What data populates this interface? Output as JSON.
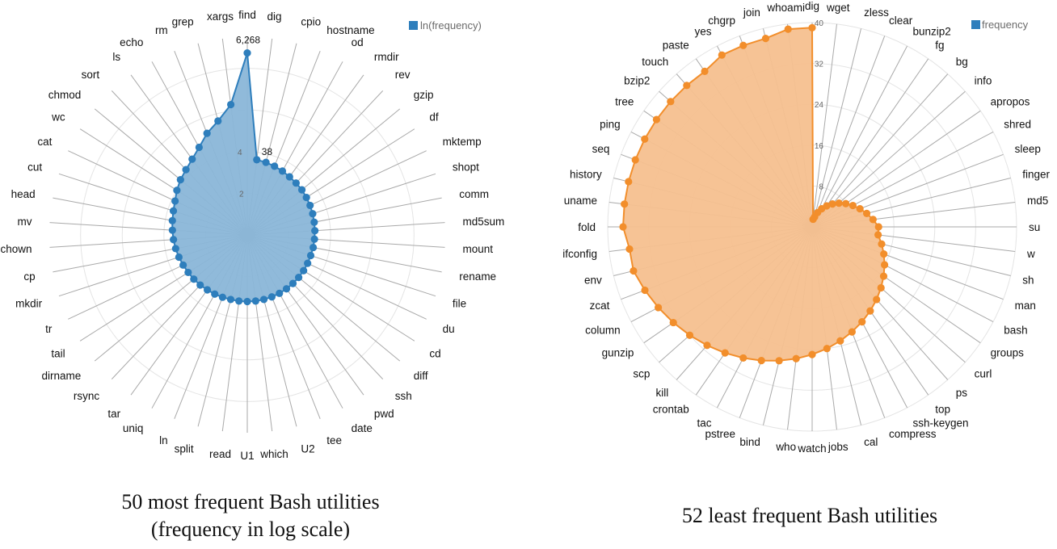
{
  "chart_data": [
    {
      "type": "radar",
      "legend": {
        "label": "ln(frequency)",
        "position": "top-right"
      },
      "caption": [
        "50 most frequent Bash utilities",
        "(frequency in log scale)"
      ],
      "color": "#2e7ebc",
      "fill": "#8ab6d8",
      "tick_labels": [
        "2",
        "4",
        "38",
        "6,268"
      ],
      "rmax": 9.5,
      "categories": [
        "find",
        "dig",
        "cpio",
        "hostname",
        "od",
        "rmdir",
        "rev",
        "gzip",
        "df",
        "mktemp",
        "shopt",
        "comm",
        "md5sum",
        "mount",
        "rename",
        "file",
        "du",
        "cd",
        "diff",
        "ssh",
        "pwd",
        "date",
        "tee",
        "U2",
        "which",
        "U1",
        "read",
        "split",
        "ln",
        "uniq",
        "tar",
        "rsync",
        "dirname",
        "tail",
        "tr",
        "mkdir",
        "cp",
        "chown",
        "mv",
        "head",
        "cut",
        "cat",
        "wc",
        "chmod",
        "sort",
        "ls",
        "echo",
        "rm",
        "grep",
        "xargs"
      ],
      "values": [
        8.74,
        3.64,
        3.6,
        3.55,
        3.5,
        3.45,
        3.42,
        3.4,
        3.36,
        3.33,
        3.3,
        3.27,
        3.25,
        3.23,
        3.22,
        3.2,
        3.2,
        3.2,
        3.2,
        3.2,
        3.2,
        3.2,
        3.2,
        3.2,
        3.2,
        3.2,
        3.2,
        3.2,
        3.22,
        3.24,
        3.26,
        3.3,
        3.33,
        3.36,
        3.4,
        3.45,
        3.5,
        3.55,
        3.6,
        3.66,
        3.73,
        3.83,
        4.0,
        4.16,
        4.3,
        4.5,
        4.8,
        5.25,
        5.65,
        6.31
      ]
    },
    {
      "type": "radar",
      "legend": {
        "label": "frequency",
        "position": "top-right"
      },
      "caption": [
        "52 least frequent Bash utilities"
      ],
      "color": "#f28e2b",
      "fill": "#f5c08f",
      "tick_labels": [
        "8",
        "16",
        "24",
        "32",
        "40"
      ],
      "rmax": 40,
      "categories": [
        "dig",
        "wget",
        "zless",
        "clear",
        "bunzip2",
        "fg",
        "bg",
        "info",
        "apropos",
        "shred",
        "sleep",
        "finger",
        "md5",
        "su",
        "w",
        "sh",
        "man",
        "bash",
        "groups",
        "curl",
        "ps",
        "top",
        "ssh-keygen",
        "compress",
        "cal",
        "jobs",
        "watch",
        "who",
        "bind",
        "pstree",
        "tac",
        "crontab",
        "kill",
        "scp",
        "gunzip",
        "column",
        "zcat",
        "env",
        "ifconfig",
        "fold",
        "uname",
        "history",
        "seq",
        "ping",
        "tree",
        "bzip2",
        "touch",
        "paste",
        "yes",
        "chgrp",
        "join",
        "whoami"
      ],
      "values": [
        39,
        1.5,
        2,
        3,
        4,
        5,
        6,
        7,
        8,
        9,
        10,
        11,
        12,
        13,
        13,
        14,
        15,
        16,
        17,
        18,
        19,
        20,
        21,
        22,
        23,
        24,
        25,
        26,
        27,
        28,
        29,
        30,
        31,
        32,
        33,
        34,
        35,
        36,
        36,
        37,
        37,
        37,
        37,
        37,
        37,
        37,
        37,
        37,
        38,
        38,
        38,
        39
      ]
    }
  ]
}
